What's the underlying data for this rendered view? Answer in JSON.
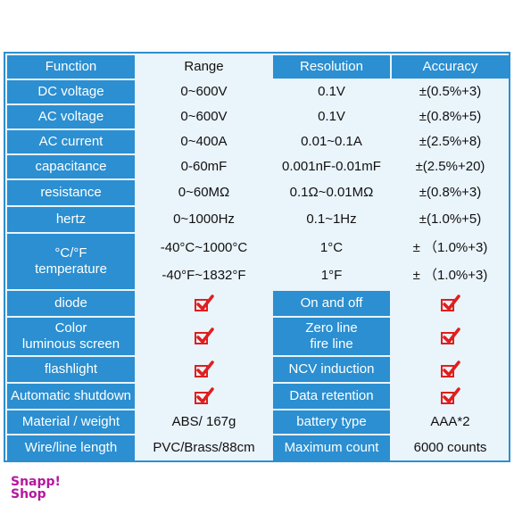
{
  "headers": {
    "function": "Function",
    "range": "Range",
    "resolution": "Resolution",
    "accuracy": "Accuracy"
  },
  "rows": [
    {
      "function": "DC voltage",
      "range": "0~600V",
      "resolution": "0.1V",
      "accuracy": "±(0.5%+3)"
    },
    {
      "function": "AC voltage",
      "range": "0~600V",
      "resolution": "0.1V",
      "accuracy": "±(0.8%+5)"
    },
    {
      "function": "AC current",
      "range": "0~400A",
      "resolution": "0.01~0.1A",
      "accuracy": "±(2.5%+8)"
    },
    {
      "function": "capacitance",
      "range": "0-60mF",
      "resolution": "0.001nF-0.01mF",
      "accuracy": "±(2.5%+20)"
    },
    {
      "function": "resistance",
      "range": "0~60MΩ",
      "resolution": "0.1Ω~0.01MΩ",
      "accuracy": "±(0.8%+3)"
    },
    {
      "function": "hertz",
      "range": "0~1000Hz",
      "resolution": "0.1~1Hz",
      "accuracy": "±(1.0%+5)"
    }
  ],
  "temperature": {
    "label_line1": "°C/°F",
    "label_line2": "temperature",
    "range_c": "-40°C~1000°C",
    "range_f": "-40°F~1832°F",
    "resolution_c": "1°C",
    "resolution_f": "1°F",
    "accuracy_c": "± （1.0%+3)",
    "accuracy_f": "± （1.0%+3)"
  },
  "features": {
    "diode": "diode",
    "color_screen_line1": "Color",
    "color_screen_line2": "luminous screen",
    "flashlight": "flashlight",
    "auto_shutdown": "Automatic shutdown",
    "on_off": "On and off",
    "zero_line_line1": "Zero line",
    "zero_line_line2": "fire line",
    "ncv": "NCV induction",
    "data_retention": "Data retention"
  },
  "specs": {
    "material_label": "Material / weight",
    "material_value": "ABS/ 167g",
    "battery_label": "battery type",
    "battery_value": "AAA*2",
    "wire_label": "Wire/line length",
    "wire_value": "PVC/Brass/88cm",
    "max_count_label": "Maximum count",
    "max_count_value": "6000 counts"
  },
  "icons": {
    "check": "checkmark-icon",
    "check_color": "#e01e1e"
  },
  "brand": {
    "line1": "Snapp!",
    "line2": "Shop",
    "color": "#b5179e"
  }
}
